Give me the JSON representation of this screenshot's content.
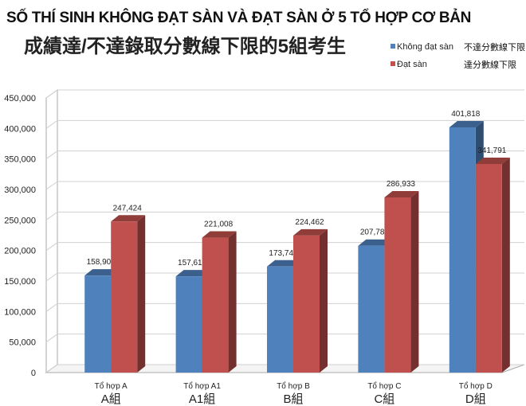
{
  "title": "SỐ THÍ SINH KHÔNG ĐẠT SÀN VÀ ĐẠT SÀN Ở 5 TỔ HỢP CƠ BẢN",
  "subtitle": "成績達/不達錄取分數線下限的5組考生",
  "chart_data": {
    "type": "bar",
    "title": "SỐ THÍ SINH KHÔNG ĐẠT SÀN VÀ ĐẠT SÀN Ở 5 TỔ HỢP CƠ BẢN",
    "subtitle": "成績達/不達錄取分數線下限的5組考生",
    "categories": [
      "Tổ hợp A",
      "Tổ hợp A1",
      "Tổ hợp B",
      "Tổ hợp C",
      "Tổ hợp D"
    ],
    "category_annotations": [
      "A組",
      "A1組",
      "B組",
      "C組",
      "D組"
    ],
    "series": [
      {
        "name": "Không đạt sàn",
        "annotation": "不達分數線下限",
        "color": "#4f81bd",
        "values": [
          158902,
          157617,
          173747,
          207783,
          401818
        ],
        "labels": [
          "158,902",
          "157,617",
          "173,747",
          "207,783",
          "401,818"
        ]
      },
      {
        "name": "Đạt sàn",
        "annotation": "達分數線下限",
        "color": "#c0504d",
        "values": [
          247424,
          221008,
          224462,
          286933,
          341791
        ],
        "labels": [
          "247,424",
          "221,008",
          "224,462",
          "286,933",
          "341,791"
        ]
      }
    ],
    "yticks": [
      "0",
      "50,000",
      "100,000",
      "150,000",
      "200,000",
      "250,000",
      "300,000",
      "350,000",
      "400,000",
      "450,000"
    ],
    "ylim": [
      0,
      450000
    ],
    "grid": true,
    "legend": "top-right",
    "style": "3d-column"
  }
}
